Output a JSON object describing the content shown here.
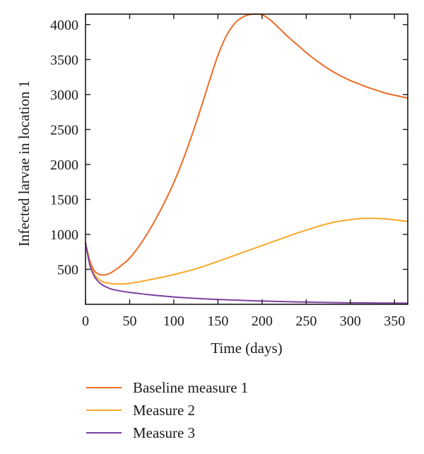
{
  "chart_data": {
    "type": "line",
    "title": "",
    "xlabel": "Time (days)",
    "ylabel": "Infected larvae in location 1",
    "xlim": [
      0,
      365
    ],
    "ylim": [
      0,
      4150
    ],
    "xticks": [
      0,
      50,
      100,
      150,
      200,
      250,
      300,
      350
    ],
    "yticks": [
      500,
      1000,
      1500,
      2000,
      2500,
      3000,
      3500,
      4000
    ],
    "grid": false,
    "legend_position": "below",
    "series": [
      {
        "name": "Baseline measure 1",
        "color": "#ee6a22",
        "x": [
          0,
          5,
          10,
          15,
          20,
          25,
          30,
          40,
          50,
          60,
          70,
          80,
          90,
          100,
          110,
          120,
          130,
          140,
          150,
          160,
          170,
          180,
          190,
          200,
          210,
          220,
          230,
          240,
          250,
          260,
          270,
          280,
          290,
          300,
          310,
          320,
          330,
          340,
          350,
          365
        ],
        "y": [
          880,
          620,
          480,
          430,
          420,
          430,
          460,
          550,
          660,
          820,
          1010,
          1230,
          1470,
          1740,
          2050,
          2400,
          2780,
          3180,
          3560,
          3850,
          4030,
          4120,
          4150,
          4140,
          4060,
          3940,
          3820,
          3710,
          3600,
          3500,
          3410,
          3330,
          3260,
          3200,
          3150,
          3100,
          3060,
          3020,
          2990,
          2950
        ]
      },
      {
        "name": "Measure 2",
        "color": "#f9a628",
        "x": [
          0,
          5,
          10,
          15,
          20,
          25,
          30,
          40,
          50,
          60,
          70,
          80,
          90,
          100,
          120,
          140,
          160,
          180,
          200,
          220,
          240,
          260,
          280,
          300,
          310,
          320,
          330,
          340,
          350,
          365
        ],
        "y": [
          880,
          580,
          430,
          360,
          320,
          305,
          295,
          290,
          300,
          320,
          345,
          370,
          395,
          425,
          490,
          570,
          660,
          750,
          840,
          930,
          1020,
          1100,
          1170,
          1210,
          1225,
          1230,
          1228,
          1220,
          1208,
          1185
        ]
      },
      {
        "name": "Measure 3",
        "color": "#7c3f9f",
        "x": [
          0,
          5,
          10,
          15,
          20,
          25,
          30,
          40,
          50,
          60,
          70,
          80,
          90,
          100,
          120,
          140,
          160,
          180,
          200,
          220,
          240,
          260,
          280,
          300,
          320,
          340,
          365
        ],
        "y": [
          880,
          560,
          400,
          320,
          270,
          240,
          215,
          190,
          170,
          155,
          140,
          128,
          116,
          105,
          88,
          75,
          64,
          55,
          47,
          40,
          34,
          29,
          25,
          22,
          20,
          18,
          17
        ]
      }
    ]
  }
}
